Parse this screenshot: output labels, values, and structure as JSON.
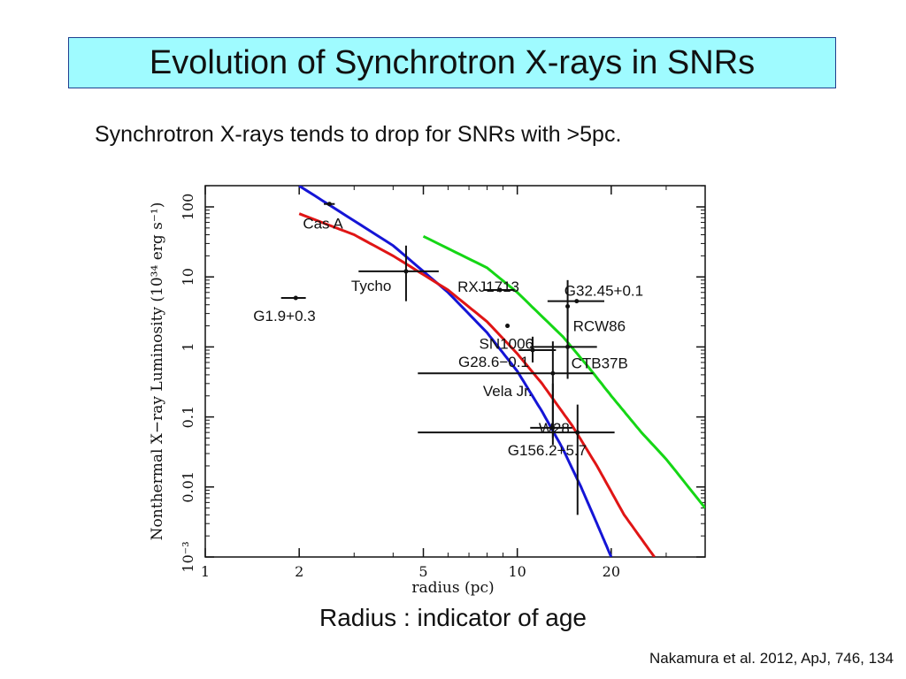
{
  "slide": {
    "title": "Evolution of Synchrotron X-rays in SNRs",
    "subtitle": "Synchrotron X-rays tends to drop for SNRs with >5pc.",
    "caption": "Radius : indicator of age",
    "citation": "Nakamura et al. 2012, ApJ, 746, 134"
  },
  "chart_data": {
    "type": "scatter",
    "xlabel": "radius (pc)",
    "ylabel": "Nonthermal X−ray Luminosity (10³⁴ erg s⁻¹)",
    "xscale": "log",
    "yscale": "log",
    "xlim": [
      1,
      40
    ],
    "ylim": [
      0.001,
      200
    ],
    "x_ticks": [
      {
        "value": 1,
        "label": "1"
      },
      {
        "value": 2,
        "label": "2"
      },
      {
        "value": 5,
        "label": "5"
      },
      {
        "value": 10,
        "label": "10"
      },
      {
        "value": 20,
        "label": "20"
      }
    ],
    "y_ticks": [
      {
        "value": 100,
        "label": "100"
      },
      {
        "value": 10,
        "label": "10"
      },
      {
        "value": 1,
        "label": "1"
      },
      {
        "value": 0.1,
        "label": "0.1"
      },
      {
        "value": 0.01,
        "label": "0.01"
      },
      {
        "value": 0.001,
        "label": "10⁻³"
      }
    ],
    "points": [
      {
        "name": "Cas A",
        "x": 2.5,
        "y": 110,
        "xerr": [
          2.4,
          2.6
        ]
      },
      {
        "name": "G1.9+0.3",
        "x": 1.95,
        "y": 5,
        "xerr": [
          1.75,
          2.1
        ]
      },
      {
        "name": "Tycho",
        "x": 4.4,
        "y": 12,
        "xerr": [
          3.1,
          5.6
        ],
        "yerr": [
          4.5,
          28
        ]
      },
      {
        "name": "RXJ1713",
        "x": 8.8,
        "y": 6.5,
        "xerr": [
          7.8,
          9.8
        ]
      },
      {
        "name": "G32.45+0.1",
        "x": 15.5,
        "y": 4.5,
        "xerr": [
          12.5,
          19
        ]
      },
      {
        "name": "RCW86",
        "x": 14.5,
        "y": 3.8,
        "yerr": [
          1.6,
          9
        ]
      },
      {
        "name": "SN1006",
        "x": 9.3,
        "y": 2.0
      },
      {
        "name": "G28.6−0.1",
        "x": 11.2,
        "y": 0.9,
        "xerr": [
          10.1,
          13.3
        ],
        "yerr": [
          0.6,
          1.4
        ]
      },
      {
        "name": "CTB37B",
        "x": 14.5,
        "y": 1.0,
        "xerr": [
          11,
          18
        ],
        "yerr": [
          0.35,
          4
        ]
      },
      {
        "name": "Vela Jr.",
        "x": 13.0,
        "y": 0.42,
        "xerr": [
          4.8,
          17.5
        ],
        "yerr": [
          0.05,
          1.2
        ]
      },
      {
        "name": "W28",
        "x": 13.0,
        "y": 0.07,
        "xerr": [
          11,
          15
        ],
        "yerr": [
          0.04,
          0.3
        ]
      },
      {
        "name": "G156.2+5.7",
        "x": 15.6,
        "y": 0.06,
        "xerr": [
          4.8,
          20.5
        ],
        "yerr": [
          0.004,
          0.15
        ]
      }
    ],
    "series": [
      {
        "color": "#1515d6",
        "x": [
          2.0,
          4.0,
          6.0,
          8.0,
          10.0,
          12.0,
          14.0,
          16.0,
          18.0,
          20.0
        ],
        "y": [
          200,
          28,
          6.0,
          1.6,
          0.45,
          0.12,
          0.035,
          0.01,
          0.003,
          0.001
        ]
      },
      {
        "color": "#e01515",
        "x": [
          2.0,
          3.0,
          4.0,
          6.0,
          8.0,
          10.0,
          12.0,
          15.0,
          18.0,
          22.0,
          27.5
        ],
        "y": [
          80,
          40,
          20,
          6.5,
          2.3,
          0.8,
          0.3,
          0.075,
          0.02,
          0.004,
          0.001
        ]
      },
      {
        "color": "#15d615",
        "x": [
          5.0,
          8.0,
          10.0,
          14.0,
          17.0,
          20.0,
          25.0,
          30.0,
          40.0
        ],
        "y": [
          38,
          13.5,
          6.0,
          1.4,
          0.5,
          0.2,
          0.06,
          0.025,
          0.005
        ]
      }
    ],
    "grid": false,
    "legend": "none"
  }
}
